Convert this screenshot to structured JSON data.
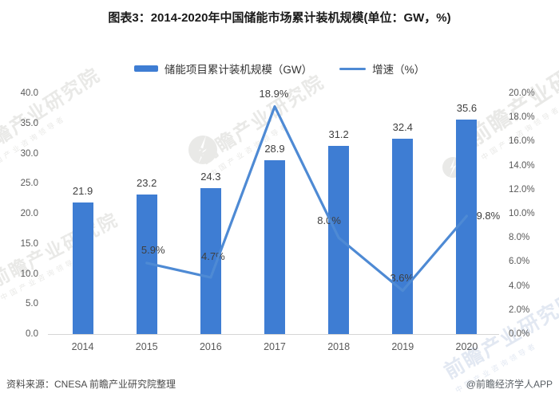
{
  "title": "图表3：2014-2020年中国储能市场累计装机规模(单位：GW，%)",
  "legend": [
    {
      "label": "储能项目累计装机规模（GW）",
      "marker": "bar"
    },
    {
      "label": "增速（%）",
      "marker": "line"
    }
  ],
  "colors": {
    "bar": "#3e7dd3",
    "line": "#4e8ad4",
    "axis_text": "#595959",
    "value_text": "#3f3f3f",
    "axis_line": "#d5d5d5",
    "watermark_gray": "#e9e9e7",
    "watermark_blue": "#e2e8f2"
  },
  "chart_data": {
    "type": "bar",
    "title": "图表3：2014-2020年中国储能市场累计装机规模(单位：GW，%)",
    "categories": [
      "2014",
      "2015",
      "2016",
      "2017",
      "2018",
      "2019",
      "2020"
    ],
    "series": [
      {
        "name": "储能项目累计装机规模（GW）",
        "type": "bar",
        "axis": "left",
        "values": [
          21.9,
          23.2,
          24.3,
          28.9,
          31.2,
          32.4,
          35.6
        ],
        "labels": [
          "21.9",
          "23.2",
          "24.3",
          "28.9",
          "31.2",
          "32.4",
          "35.6"
        ]
      },
      {
        "name": "增速（%）",
        "type": "line",
        "axis": "right",
        "values": [
          null,
          5.9,
          4.7,
          18.9,
          8.0,
          3.6,
          9.8
        ],
        "labels": [
          "",
          "5.9%",
          "4.7%",
          "18.9%",
          "8.0%",
          "3.6%",
          "9.8%"
        ]
      }
    ],
    "left_axis": {
      "min": 0,
      "max": 40,
      "ticks": [
        "0.0",
        "5.0",
        "10.0",
        "15.0",
        "20.0",
        "25.0",
        "30.0",
        "35.0",
        "40.0"
      ]
    },
    "right_axis": {
      "min": 0,
      "max": 20,
      "ticks": [
        "0.0%",
        "2.0%",
        "4.0%",
        "6.0%",
        "8.0%",
        "10.0%",
        "12.0%",
        "14.0%",
        "16.0%",
        "18.0%",
        "20.0%"
      ]
    },
    "grid": false,
    "legend_position": "top"
  },
  "watermark": {
    "main": "前瞻产业研究院",
    "sub": "中国产业咨询领导者"
  },
  "footer": {
    "source": "资料来源：CNESA 前瞻产业研究院整理",
    "credit": "@前瞻经济学人APP"
  }
}
